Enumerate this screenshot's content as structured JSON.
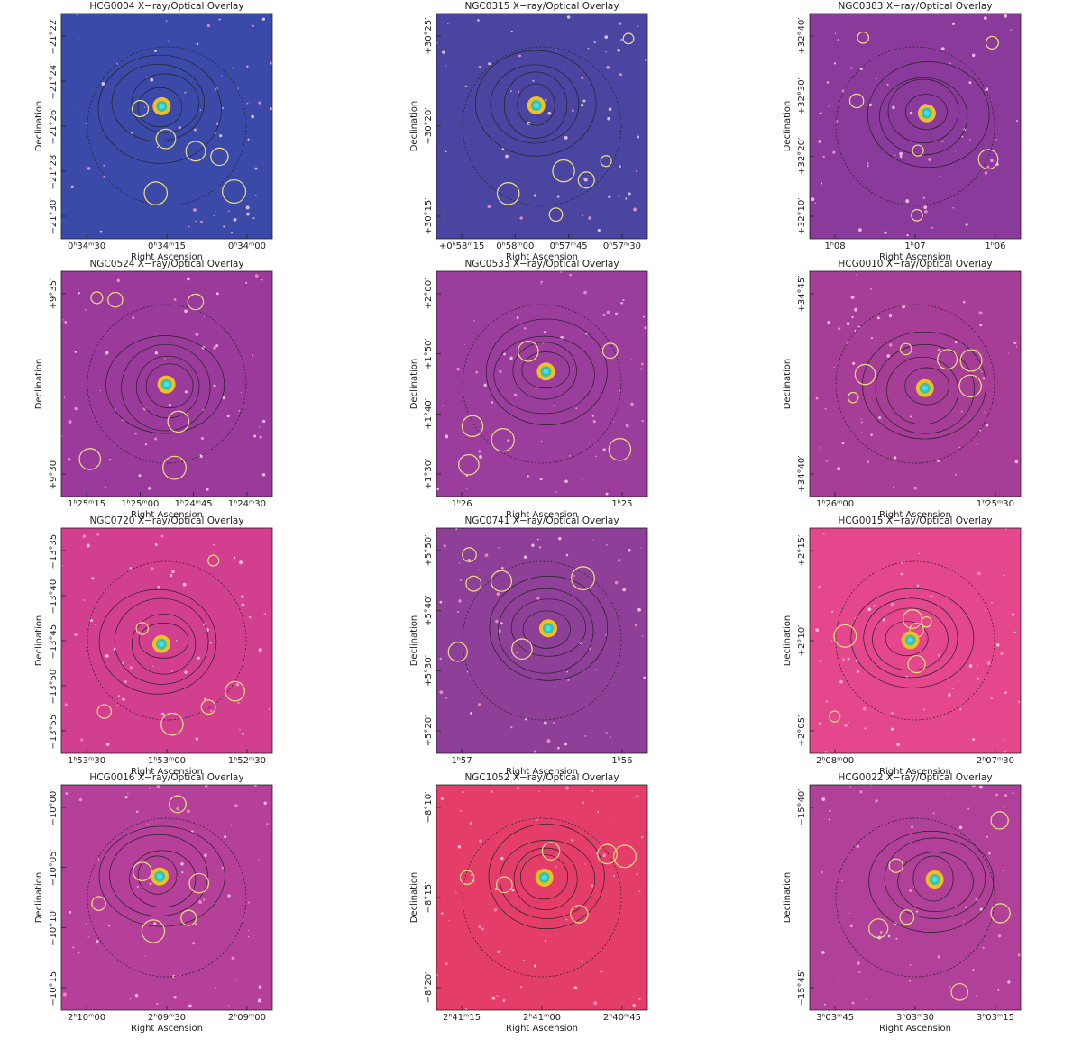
{
  "panels": [
    {
      "title": "HCG0004 X−ray/Optical Overlay",
      "background": "#3b4aa8",
      "xlabel": "Right Ascension",
      "ylabel": "Declination",
      "xticks": [
        "0ʰ34ᵐ30",
        "0ʰ34ᵐ15",
        "0ʰ34ᵐ00"
      ],
      "yticks": [
        "−21°22′",
        "−21°24′",
        "−21°26′",
        "−21°28′",
        "−21°30′"
      ]
    },
    {
      "title": "NGC0315 X−ray/Optical Overlay",
      "background": "#4a45a0",
      "xlabel": "Right Ascension",
      "ylabel": "Declination",
      "xticks": [
        "+0ʰ58ᵐ15",
        "0ʰ58ᵐ00",
        "0ʰ57ᵐ45",
        "0ʰ57ᵐ30"
      ],
      "yticks": [
        "+30°25′",
        "+30°20′",
        "+30°15′"
      ]
    },
    {
      "title": "NGC0383 X−ray/Optical Overlay",
      "background": "#8a3a9a",
      "xlabel": "Right Ascension",
      "ylabel": "Declination",
      "xticks": [
        "1ʰ08",
        "1ʰ07",
        "1ʰ06"
      ],
      "yticks": [
        "+32°40′",
        "+32°30′",
        "+32°20′",
        "+32°10′"
      ]
    },
    {
      "title": "NGC0524 X−ray/Optical Overlay",
      "background": "#9a3a9a",
      "xlabel": "Right Ascension",
      "ylabel": "Declination",
      "xticks": [
        "1ʰ25ᵐ15",
        "1ʰ25ᵐ00",
        "1ʰ24ᵐ45",
        "1ʰ24ᵐ30"
      ],
      "yticks": [
        "+9°35′",
        "+9°30′"
      ]
    },
    {
      "title": "NGC0533 X−ray/Optical Overlay",
      "background": "#9a3d9c",
      "xlabel": "Right Ascension",
      "ylabel": "Declination",
      "xticks": [
        "1ʰ26",
        "1ʰ25"
      ],
      "yticks": [
        "+2°00′",
        "+1°50′",
        "+1°40′",
        "+1°30′"
      ]
    },
    {
      "title": "HCG0010 X−ray/Optical Overlay",
      "background": "#a63d96",
      "xlabel": "Right Ascension",
      "ylabel": "Declination",
      "xticks": [
        "1ʰ26ᵐ00",
        "1ʰ25ᵐ30"
      ],
      "yticks": [
        "+34°45′",
        "+34°40′"
      ]
    },
    {
      "title": "NGC0720 X−ray/Optical Overlay",
      "background": "#d23f8f",
      "xlabel": "Right Ascension",
      "ylabel": "Declination",
      "xticks": [
        "1ʰ53ᵐ30",
        "1ʰ53ᵐ00",
        "1ʰ52ᵐ30"
      ],
      "yticks": [
        "−13°35′",
        "−13°40′",
        "−13°45′",
        "−13°50′",
        "−13°55′"
      ]
    },
    {
      "title": "NGC0741 X−ray/Optical Overlay",
      "background": "#8e3f98",
      "xlabel": "Right Ascension",
      "ylabel": "Declination",
      "xticks": [
        "1ʰ57",
        "1ʰ56"
      ],
      "yticks": [
        "+5°50′",
        "+5°40′",
        "+5°30′",
        "+5°20′"
      ]
    },
    {
      "title": "HCG0015 X−ray/Optical Overlay",
      "background": "#e5478c",
      "xlabel": "Right Ascension",
      "ylabel": "Declination",
      "xticks": [
        "2ʰ08ᵐ00",
        "2ʰ07ᵐ30"
      ],
      "yticks": [
        "+2°15′",
        "+2°10′",
        "+2°05′"
      ]
    },
    {
      "title": "HCG0016 X−ray/Optical Overlay",
      "background": "#b5409a",
      "xlabel": "Right Ascension",
      "ylabel": "Declination",
      "xticks": [
        "2ʰ10ᵐ00",
        "2ʰ09ᵐ30",
        "2ʰ09ᵐ00"
      ],
      "yticks": [
        "−10°00′",
        "−10°05′",
        "−10°10′",
        "−10°15′"
      ]
    },
    {
      "title": "NGC1052 X−ray/Optical Overlay",
      "background": "#e53d6a",
      "xlabel": "Right Ascension",
      "ylabel": "Declination",
      "xticks": [
        "2ʰ41ᵐ15",
        "2ʰ41ᵐ00",
        "2ʰ40ᵐ45"
      ],
      "yticks": [
        "−8°10′",
        "−8°15′",
        "−8°20′"
      ]
    },
    {
      "title": "HCG0022 X−ray/Optical Overlay",
      "background": "#b04098",
      "xlabel": "Right Ascension",
      "ylabel": "Declination",
      "xticks": [
        "3ʰ03ᵐ45",
        "3ʰ03ᵐ30",
        "3ʰ03ᵐ15"
      ],
      "yticks": [
        "−15°40′",
        "−15°45′"
      ]
    }
  ]
}
